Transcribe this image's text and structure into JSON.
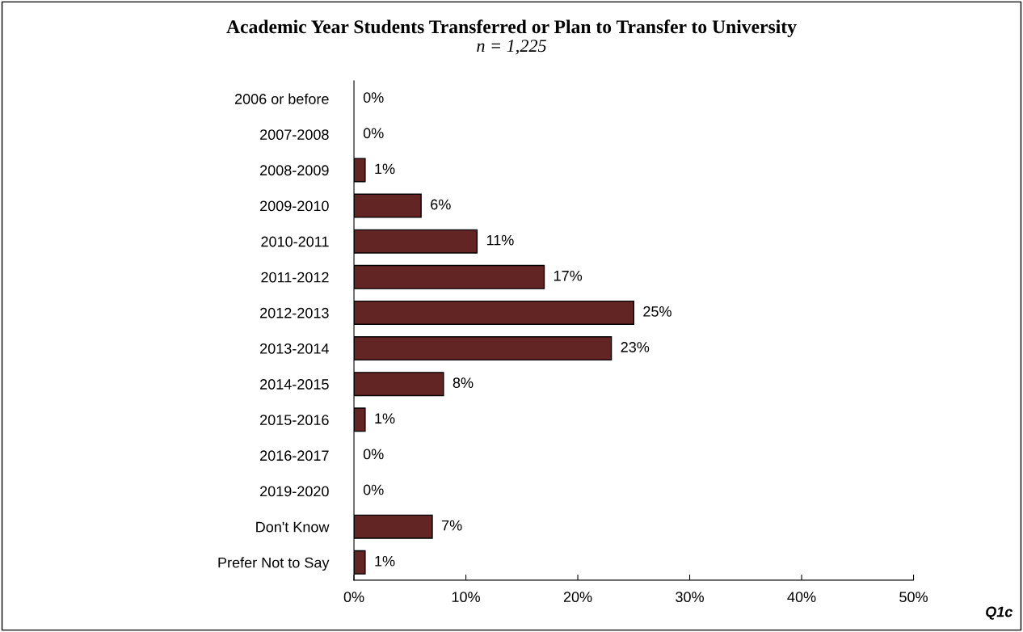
{
  "chart_data": {
    "type": "bar",
    "orientation": "horizontal",
    "title": "Academic Year Students Transferred or Plan to Transfer to University",
    "subtitle": "n = 1,225",
    "categories": [
      "2006 or before",
      "2007-2008",
      "2008-2009",
      "2009-2010",
      "2010-2011",
      "2011-2012",
      "2012-2013",
      "2013-2014",
      "2014-2015",
      "2015-2016",
      "2016-2017",
      "2019-2020",
      "Don't Know",
      "Prefer Not to Say"
    ],
    "values": [
      0,
      0,
      1,
      6,
      11,
      17,
      25,
      23,
      8,
      1,
      0,
      0,
      7,
      1
    ],
    "value_labels": [
      "0%",
      "0%",
      "1%",
      "6%",
      "11%",
      "17%",
      "25%",
      "23%",
      "8%",
      "1%",
      "0%",
      "0%",
      "7%",
      "1%"
    ],
    "color": "#632523",
    "xlim": [
      0,
      50
    ],
    "xticks": [
      {
        "value": 0,
        "label": "0%"
      },
      {
        "value": 10,
        "label": "10%"
      },
      {
        "value": 20,
        "label": "20%"
      },
      {
        "value": 30,
        "label": "30%"
      },
      {
        "value": 40,
        "label": "40%"
      },
      {
        "value": 50,
        "label": "50%"
      }
    ],
    "grid": false,
    "legend": false,
    "annotations": [
      "Q1c"
    ]
  }
}
